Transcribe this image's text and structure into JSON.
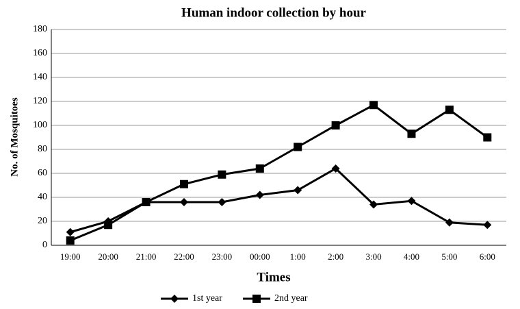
{
  "chart_data": {
    "type": "line",
    "title": "Human indoor collection by hour",
    "x_label": "Times",
    "y_label": "No. of Mosquitoes",
    "categories": [
      "19:00",
      "20:00",
      "21:00",
      "22:00",
      "23:00",
      "00:00",
      "1:00",
      "2:00",
      "3:00",
      "4:00",
      "5:00",
      "6:00"
    ],
    "series": [
      {
        "name": "1st year",
        "color": "#000000",
        "marker": "diamond",
        "values": [
          11,
          20,
          36,
          36,
          36,
          42,
          46,
          64,
          34,
          37,
          19,
          17
        ]
      },
      {
        "name": "2nd year",
        "color": "#000000",
        "marker": "square",
        "values": [
          4,
          17,
          36,
          51,
          59,
          64,
          82,
          100,
          117,
          93,
          113,
          90
        ]
      }
    ],
    "ylim": [
      0,
      180
    ],
    "yticks": [
      0,
      20,
      40,
      60,
      80,
      100,
      120,
      140,
      160,
      180
    ],
    "grid": true,
    "legend": "bottom"
  }
}
